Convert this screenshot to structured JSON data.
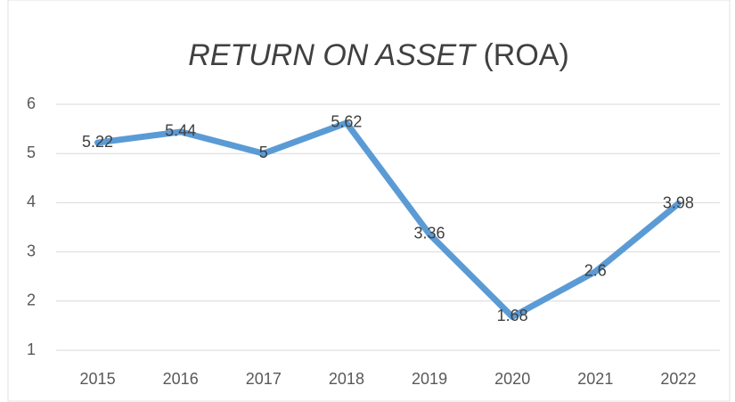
{
  "chart_data": {
    "type": "line",
    "title": [
      "RETURN ON ASSET",
      "(ROA)"
    ],
    "categories": [
      "2015",
      "2016",
      "2017",
      "2018",
      "2019",
      "2020",
      "2021",
      "2022"
    ],
    "series": [
      {
        "name": "ROA",
        "color": "#5b9bd5",
        "values": [
          5.22,
          5.44,
          5,
          5.62,
          3.36,
          1.68,
          2.6,
          3.98
        ]
      }
    ],
    "ylim": [
      1,
      6
    ],
    "yticks": [
      1,
      2,
      3,
      4,
      5,
      6
    ],
    "grid": true,
    "data_labels": true
  }
}
